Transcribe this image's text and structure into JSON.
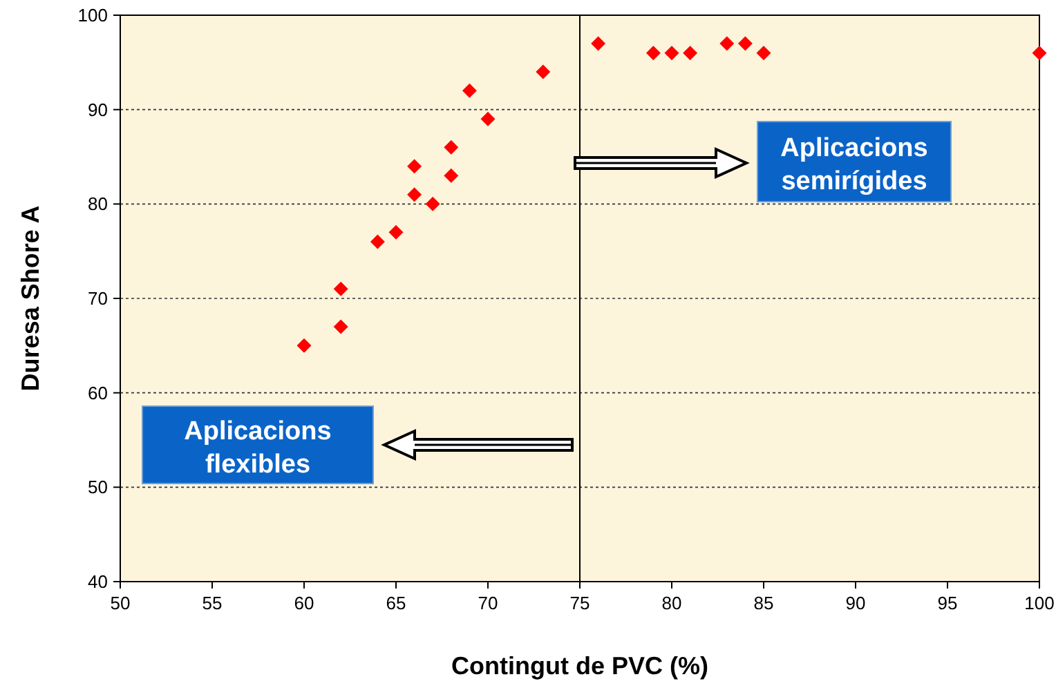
{
  "chart_data": {
    "type": "scatter",
    "xlabel": "Contingut de PVC (%)",
    "ylabel": "Duresa Shore A",
    "x": [
      60,
      62,
      62,
      64,
      65,
      66,
      66,
      67,
      68,
      68,
      69,
      70,
      73,
      76,
      79,
      80,
      81,
      83,
      84,
      85,
      100
    ],
    "series": [
      {
        "color": "#ff0000",
        "values": [
          65,
          71,
          67,
          76,
          77,
          84,
          81,
          80,
          86,
          83,
          92,
          89,
          94,
          97,
          96,
          96,
          96,
          97,
          97,
          96,
          96
        ]
      }
    ],
    "xlim": [
      50,
      100
    ],
    "xticks": [
      50,
      55,
      60,
      65,
      70,
      75,
      80,
      85,
      90,
      95,
      100
    ],
    "ylim": [
      40,
      100
    ],
    "yticks": [
      40,
      50,
      60,
      70,
      80,
      90,
      100
    ],
    "grid": "y",
    "marker": "diamond",
    "ref_lines": [
      {
        "axis": "x",
        "value": 75,
        "color": "#000000"
      }
    ],
    "annotations": [
      "Aplicacions\nsemirígides",
      "Aplicacions\nflexibles"
    ]
  }
}
